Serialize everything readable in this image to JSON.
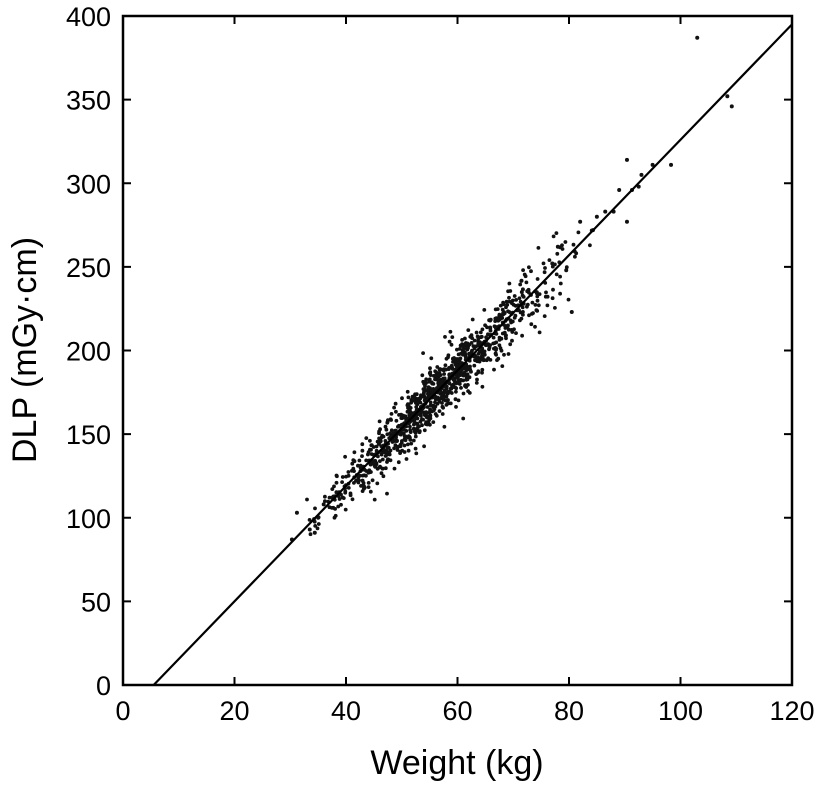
{
  "chart_data": {
    "type": "scatter",
    "title": "",
    "xlabel": "Weight (kg)",
    "ylabel": "DLP (mGy·cm)",
    "xlim": [
      0,
      120
    ],
    "ylim": [
      0,
      400
    ],
    "xticks": [
      0,
      20,
      40,
      60,
      80,
      100,
      120
    ],
    "yticks": [
      0,
      50,
      100,
      150,
      200,
      250,
      300,
      350,
      400
    ],
    "grid": false,
    "legend": null,
    "colors": {
      "points": "#111111",
      "line": "#000000",
      "axes": "#000000",
      "background": "#ffffff"
    },
    "fit_line": {
      "x": [
        5.5,
        120
      ],
      "y": [
        0,
        395
      ],
      "slope": 3.44,
      "intercept": -18.9
    },
    "cluster": {
      "n": 1100,
      "x_mean": 56,
      "x_sd": 10.5,
      "x_min": 31,
      "x_max": 95,
      "residual_sd": 9
    },
    "points": [
      {
        "x": 103.0,
        "y": 387
      },
      {
        "x": 108.4,
        "y": 352
      },
      {
        "x": 109.2,
        "y": 346
      },
      {
        "x": 98.3,
        "y": 311
      },
      {
        "x": 90.4,
        "y": 314
      },
      {
        "x": 90.4,
        "y": 277
      },
      {
        "x": 95.0,
        "y": 311
      },
      {
        "x": 93.0,
        "y": 305
      },
      {
        "x": 92.5,
        "y": 298
      },
      {
        "x": 91.3,
        "y": 296
      },
      {
        "x": 89.0,
        "y": 296
      },
      {
        "x": 88.0,
        "y": 283
      },
      {
        "x": 86.5,
        "y": 283
      },
      {
        "x": 85.0,
        "y": 280
      },
      {
        "x": 84.3,
        "y": 272
      },
      {
        "x": 82.0,
        "y": 277
      },
      {
        "x": 80.5,
        "y": 223
      },
      {
        "x": 79.5,
        "y": 248
      },
      {
        "x": 78.0,
        "y": 262
      },
      {
        "x": 77.0,
        "y": 252
      },
      {
        "x": 31.2,
        "y": 103
      },
      {
        "x": 30.3,
        "y": 87
      },
      {
        "x": 34.4,
        "y": 91
      },
      {
        "x": 33.5,
        "y": 93
      },
      {
        "x": 35.0,
        "y": 100
      },
      {
        "x": 36.0,
        "y": 108
      },
      {
        "x": 37.5,
        "y": 112
      }
    ]
  }
}
